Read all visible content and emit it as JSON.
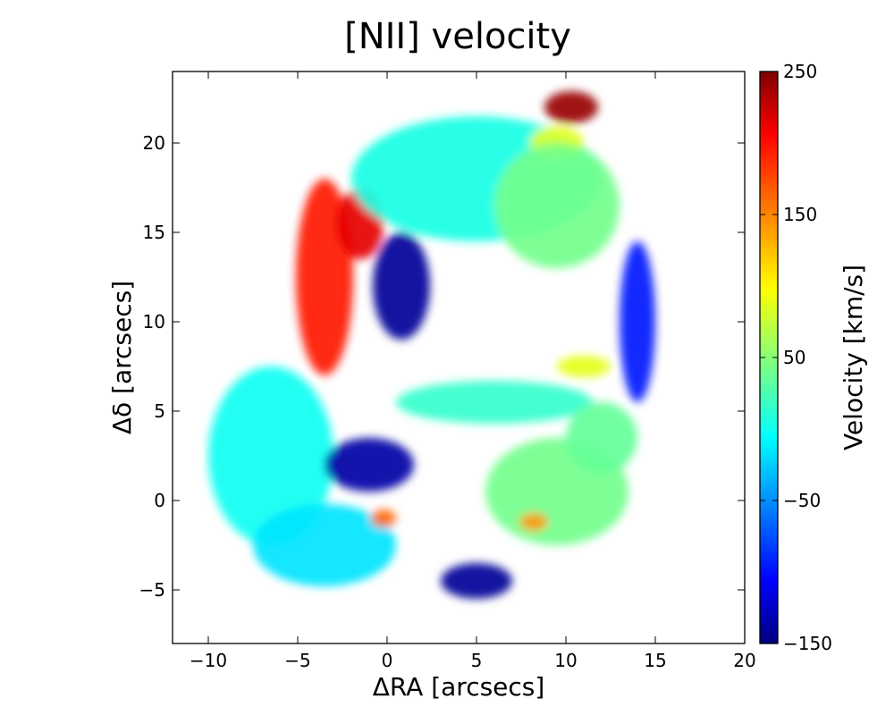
{
  "chart_data": {
    "type": "heatmap",
    "title": "[NII] velocity",
    "xlabel": "ΔRA [arcsecs]",
    "ylabel": "Δδ [arcsecs]",
    "xlim": [
      -12,
      20
    ],
    "ylim": [
      -8,
      24
    ],
    "xticks": [
      -10,
      -5,
      0,
      5,
      10,
      15,
      20
    ],
    "xtick_labels": [
      "−10",
      "−5",
      "0",
      "5",
      "10",
      "15",
      "20"
    ],
    "yticks": [
      -5,
      0,
      5,
      10,
      15,
      20
    ],
    "ytick_labels": [
      "−5",
      "0",
      "5",
      "10",
      "15",
      "20"
    ],
    "colorbar": {
      "label": "Velocity [km/s]",
      "vmin": -150,
      "vmax": 250,
      "ticks": [
        -150,
        -50,
        50,
        150,
        250
      ],
      "tick_labels": [
        "−150",
        "−50",
        "50",
        "150",
        "250"
      ],
      "colormap": "jet"
    },
    "regions": [
      {
        "name": "north-east-red-arm",
        "x": -3.5,
        "y": 12.5,
        "rx": 1.6,
        "ry": 5.5,
        "velocity": 190
      },
      {
        "name": "north-east-red-tip",
        "x": -1.5,
        "y": 15.5,
        "rx": 1.3,
        "ry": 2.0,
        "velocity": 210
      },
      {
        "name": "north-blue-filament",
        "x": 0.8,
        "y": 12.0,
        "rx": 1.6,
        "ry": 3.0,
        "velocity": -140
      },
      {
        "name": "north-cyan-arc",
        "x": 5.0,
        "y": 18.0,
        "rx": 7.0,
        "ry": 3.5,
        "velocity": 10
      },
      {
        "name": "north-red-knot",
        "x": 10.3,
        "y": 22.0,
        "rx": 1.5,
        "ry": 0.9,
        "velocity": 240
      },
      {
        "name": "north-yellow-knot",
        "x": 9.5,
        "y": 20.0,
        "rx": 1.5,
        "ry": 0.9,
        "velocity": 90
      },
      {
        "name": "east-green-blob",
        "x": 9.5,
        "y": 16.5,
        "rx": 3.5,
        "ry": 3.5,
        "velocity": 45
      },
      {
        "name": "east-blue-rim",
        "x": 14.0,
        "y": 10.0,
        "rx": 1.0,
        "ry": 4.5,
        "velocity": -90
      },
      {
        "name": "middle-bridge",
        "x": 6.0,
        "y": 5.5,
        "rx": 5.5,
        "ry": 1.2,
        "velocity": 20
      },
      {
        "name": "bridge-yellow-knot",
        "x": 11.0,
        "y": 7.5,
        "rx": 1.5,
        "ry": 0.6,
        "velocity": 90
      },
      {
        "name": "west-cyan-lobe",
        "x": -6.5,
        "y": 2.5,
        "rx": 3.5,
        "ry": 5.0,
        "velocity": 5
      },
      {
        "name": "south-west-cyan",
        "x": -3.5,
        "y": -2.5,
        "rx": 4.0,
        "ry": 2.3,
        "velocity": -10
      },
      {
        "name": "central-blue-knot",
        "x": -1.0,
        "y": 2.0,
        "rx": 2.5,
        "ry": 1.5,
        "velocity": -135
      },
      {
        "name": "orange-knot",
        "x": -0.2,
        "y": -1.0,
        "rx": 0.7,
        "ry": 0.5,
        "velocity": 160
      },
      {
        "name": "south-blue-knot",
        "x": 5.0,
        "y": -4.5,
        "rx": 2.0,
        "ry": 1.0,
        "velocity": -140
      },
      {
        "name": "south-east-green-arm",
        "x": 9.5,
        "y": 0.5,
        "rx": 4.0,
        "ry": 3.0,
        "velocity": 45
      },
      {
        "name": "south-east-yellow-knot",
        "x": 8.2,
        "y": -1.2,
        "rx": 0.8,
        "ry": 0.5,
        "velocity": 140
      },
      {
        "name": "east-green-knot",
        "x": 12.0,
        "y": 3.5,
        "rx": 2.0,
        "ry": 2.0,
        "velocity": 40
      }
    ]
  }
}
